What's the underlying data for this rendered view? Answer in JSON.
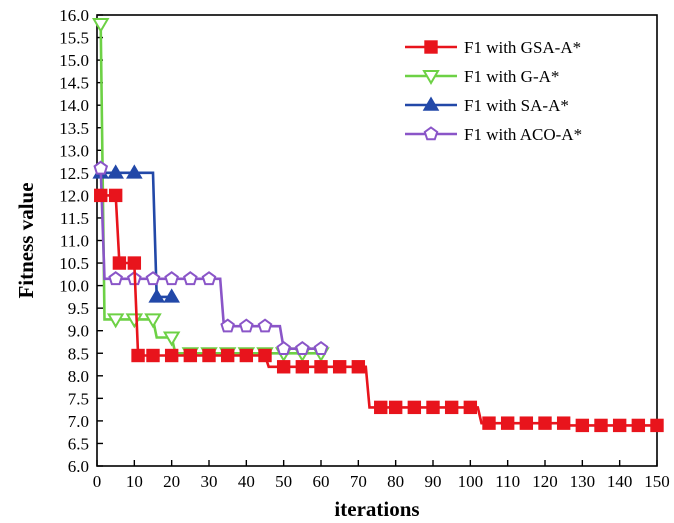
{
  "chart_data": {
    "type": "line",
    "xlabel": "iterations",
    "ylabel": "Fitness value",
    "xlim": [
      0,
      150
    ],
    "ylim": [
      6.0,
      16.0
    ],
    "xticks": [
      "0",
      "10",
      "20",
      "30",
      "40",
      "50",
      "60",
      "70",
      "80",
      "90",
      "100",
      "110",
      "120",
      "130",
      "140",
      "150"
    ],
    "yticks": [
      "6.0",
      "6.5",
      "7.0",
      "7.5",
      "8.0",
      "8.5",
      "9.0",
      "9.5",
      "10.0",
      "10.5",
      "11.0",
      "11.5",
      "12.0",
      "12.5",
      "13.0",
      "13.5",
      "14.0",
      "14.5",
      "15.0",
      "15.5",
      "16.0"
    ],
    "grid": false,
    "legend_position": "top-right",
    "series": [
      {
        "name": "F1 with GSA-A*",
        "color": "#e8141c",
        "marker": "square",
        "x": [
          1,
          5,
          6,
          10,
          11,
          15,
          20,
          25,
          30,
          35,
          40,
          45,
          46,
          50,
          55,
          60,
          65,
          70,
          71,
          72,
          73,
          76,
          80,
          85,
          90,
          95,
          100,
          102,
          103,
          105,
          110,
          115,
          120,
          125,
          126,
          130,
          135,
          140,
          145,
          150
        ],
        "y": [
          12.0,
          12.0,
          10.5,
          10.5,
          8.45,
          8.45,
          8.45,
          8.45,
          8.45,
          8.45,
          8.45,
          8.45,
          8.2,
          8.2,
          8.2,
          8.2,
          8.2,
          8.2,
          8.2,
          8.2,
          7.3,
          7.3,
          7.3,
          7.3,
          7.3,
          7.3,
          7.3,
          7.3,
          6.95,
          6.95,
          6.95,
          6.95,
          6.95,
          6.95,
          6.9,
          6.9,
          6.9,
          6.9,
          6.9,
          6.9
        ],
        "marked_x": [
          1,
          5,
          6,
          10,
          11,
          15,
          20,
          25,
          30,
          35,
          40,
          45,
          50,
          55,
          60,
          65,
          70,
          76,
          80,
          85,
          90,
          95,
          100,
          105,
          110,
          115,
          120,
          125,
          130,
          135,
          140,
          145,
          150
        ]
      },
      {
        "name": "F1 with G-A*",
        "color": "#6dd145",
        "marker": "triangle-down",
        "x": [
          0,
          1,
          2,
          5,
          10,
          11,
          15,
          16,
          20,
          21,
          25,
          30,
          35,
          40,
          45,
          50,
          55,
          60
        ],
        "y": [
          15.8,
          15.8,
          9.25,
          9.25,
          9.25,
          9.25,
          9.25,
          8.85,
          8.85,
          8.5,
          8.5,
          8.5,
          8.5,
          8.5,
          8.5,
          8.5,
          8.5,
          8.5
        ],
        "marked_x": [
          1,
          5,
          10,
          15,
          20,
          25,
          30,
          35,
          40,
          45,
          50,
          55,
          60
        ]
      },
      {
        "name": "F1 with SA-A*",
        "color": "#2248a8",
        "marker": "triangle-up",
        "x": [
          0,
          1,
          5,
          10,
          14,
          15,
          16,
          20
        ],
        "y": [
          12.5,
          12.5,
          12.5,
          12.5,
          12.5,
          12.5,
          9.75,
          9.75
        ],
        "marked_x": [
          1,
          5,
          10,
          16,
          20
        ]
      },
      {
        "name": "F1 with ACO-A*",
        "color": "#8a55c8",
        "marker": "pentagon",
        "x": [
          0,
          1,
          2,
          5,
          10,
          15,
          20,
          25,
          30,
          33,
          34,
          35,
          40,
          45,
          49,
          50,
          55,
          60
        ],
        "y": [
          12.6,
          12.6,
          10.15,
          10.15,
          10.15,
          10.15,
          10.15,
          10.15,
          10.15,
          10.15,
          9.1,
          9.1,
          9.1,
          9.1,
          9.1,
          8.6,
          8.6,
          8.6
        ],
        "marked_x": [
          1,
          5,
          10,
          15,
          20,
          25,
          30,
          35,
          40,
          45,
          50,
          55,
          60
        ]
      }
    ]
  }
}
